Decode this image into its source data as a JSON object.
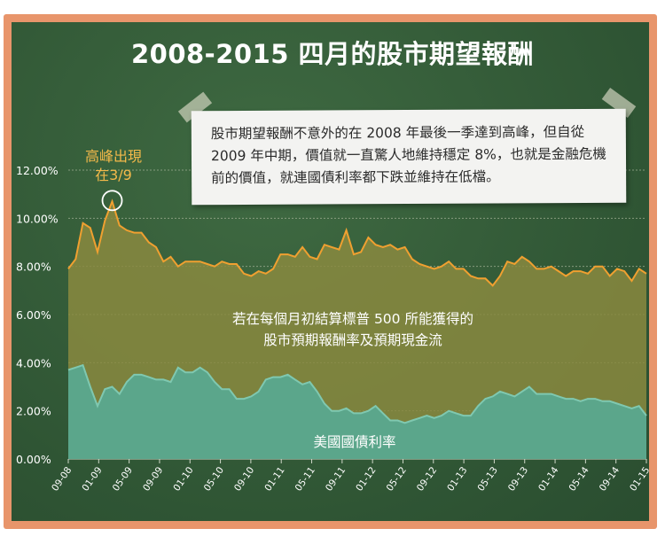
{
  "chart_data": {
    "type": "area",
    "title": "2008-2015 四月的股市期望報酬",
    "ylim": [
      0,
      12
    ],
    "yticks": [
      "0.00%",
      "2.00%",
      "4.00%",
      "6.00%",
      "8.00%",
      "10.00%",
      "12.00%"
    ],
    "xticks": [
      "09-08",
      "01-09",
      "05-09",
      "09-09",
      "01-10",
      "05-10",
      "09-10",
      "01-11",
      "05-11",
      "09-11",
      "01-12",
      "05-12",
      "09-12",
      "01-13",
      "05-13",
      "09-13",
      "01-14",
      "05-14",
      "09-14",
      "01-15"
    ],
    "grid": true,
    "series": [
      {
        "name": "股市預期報酬率及預期現金流",
        "color": "#f0a030",
        "fill": "#8a8a40",
        "values": [
          7.9,
          8.3,
          9.8,
          9.6,
          8.6,
          9.9,
          10.7,
          9.7,
          9.5,
          9.4,
          9.4,
          9.0,
          8.8,
          8.2,
          8.4,
          8.0,
          8.2,
          8.2,
          8.2,
          8.1,
          8.0,
          8.2,
          8.1,
          8.1,
          7.7,
          7.6,
          7.8,
          7.7,
          7.9,
          8.5,
          8.5,
          8.4,
          8.8,
          8.4,
          8.3,
          8.9,
          8.8,
          8.7,
          9.5,
          8.5,
          8.6,
          9.2,
          8.9,
          8.8,
          8.9,
          8.7,
          8.8,
          8.3,
          8.1,
          8.0,
          7.9,
          8.0,
          8.2,
          7.9,
          7.9,
          7.6,
          7.5,
          7.5,
          7.2,
          7.6,
          8.2,
          8.1,
          8.4,
          8.2,
          7.9,
          7.9,
          8.0,
          7.8,
          7.6,
          7.8,
          7.8,
          7.7,
          8.0,
          8.0,
          7.6,
          7.9,
          7.8,
          7.4,
          7.9,
          7.7
        ]
      },
      {
        "name": "美國國債利率",
        "color": "#7fc8b0",
        "fill": "#5aa88f",
        "values": [
          3.7,
          3.8,
          3.9,
          3.0,
          2.2,
          2.9,
          3.0,
          2.7,
          3.2,
          3.5,
          3.5,
          3.4,
          3.3,
          3.3,
          3.2,
          3.8,
          3.6,
          3.6,
          3.8,
          3.6,
          3.2,
          2.9,
          2.9,
          2.5,
          2.5,
          2.6,
          2.8,
          3.3,
          3.4,
          3.4,
          3.5,
          3.3,
          3.1,
          3.2,
          2.8,
          2.3,
          2.0,
          2.0,
          2.1,
          1.9,
          1.9,
          2.0,
          2.2,
          1.9,
          1.6,
          1.6,
          1.5,
          1.6,
          1.7,
          1.8,
          1.7,
          1.8,
          2.0,
          1.9,
          1.8,
          1.8,
          2.2,
          2.5,
          2.6,
          2.8,
          2.7,
          2.6,
          2.8,
          3.0,
          2.7,
          2.7,
          2.7,
          2.6,
          2.5,
          2.5,
          2.4,
          2.5,
          2.5,
          2.4,
          2.4,
          2.3,
          2.2,
          2.1,
          2.2,
          1.8
        ]
      }
    ],
    "annotations": {
      "peak": "高峰出現\n在3/9",
      "note": "股市期望報酬不意外的在 2008 年最後一季達到高峰，但自從 2009 年中期，價值就一直驚人地維持穩定 8%，也就是金融危機前的價值，就連國債利率都下跌並維持在低檔。",
      "area_label": "若在每個月初結算標普 500 所能獲得的\n股市預期報酬率及預期現金流",
      "bond_label": "美國國債利率"
    }
  },
  "colors": {
    "board": "#2f5534",
    "frame": "#e8956b",
    "grid": "#9aab8f",
    "axis_text": "#ffffff",
    "peak_text": "#f3b94a"
  }
}
